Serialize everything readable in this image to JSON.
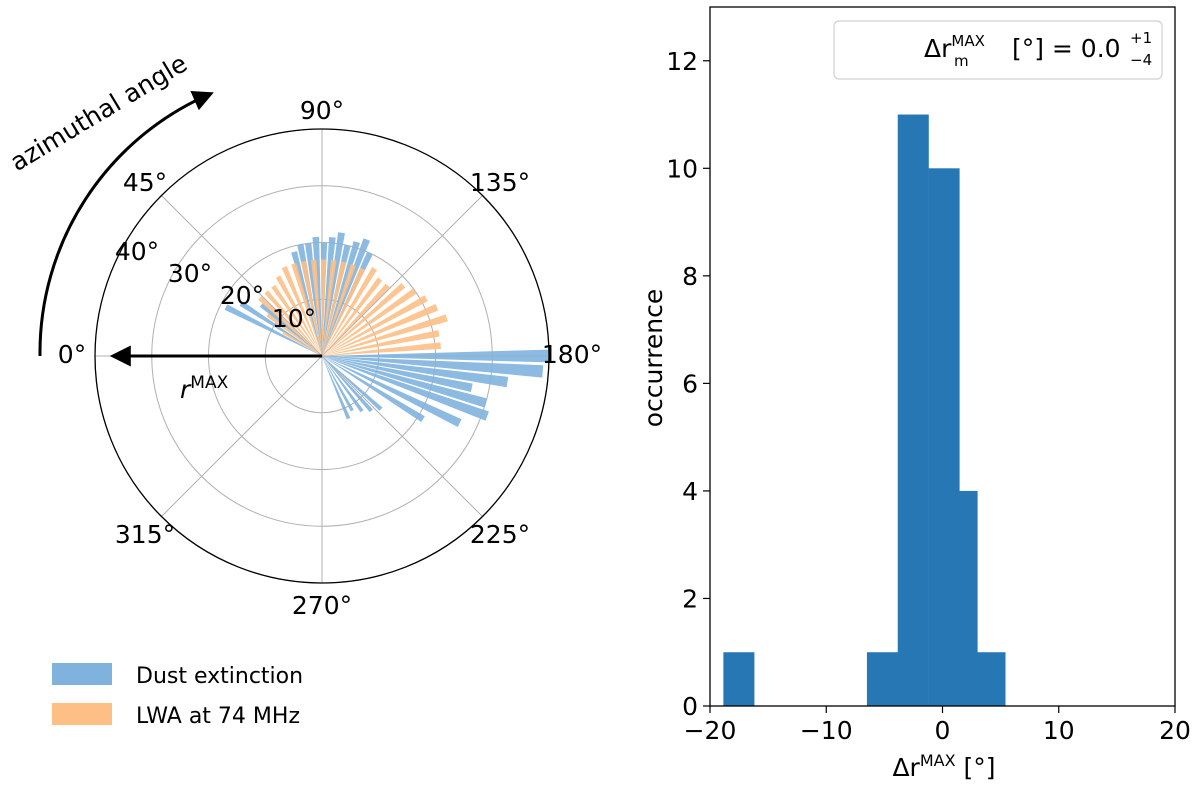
{
  "polar": {
    "angle_tick_labels": [
      "0°",
      "45°",
      "90°",
      "135°",
      "180°",
      "225°",
      "270°",
      "315°"
    ],
    "angle_tick_values": [
      0,
      45,
      90,
      135,
      180,
      225,
      270,
      315
    ],
    "radial_tick_labels": [
      "10°",
      "20°",
      "30°",
      "40°"
    ],
    "radial_tick_values": [
      10,
      20,
      30,
      40
    ],
    "rmax": 40,
    "azimuth_annotation": "azimuthal angle",
    "radius_annotation_base": "r",
    "radius_annotation_sup": "MAX",
    "legend": [
      {
        "label": "Dust extinction",
        "color": "#7fb3dd"
      },
      {
        "label": "LWA at 74 MHz",
        "color": "#fdbf85"
      }
    ]
  },
  "chart_data": [
    {
      "type": "polar-bar",
      "series": [
        {
          "name": "Dust extinction",
          "color": "#7fb3dd",
          "values": [
            {
              "angle": 27,
              "r": 19
            },
            {
              "angle": 33,
              "r": 17
            },
            {
              "angle": 40,
              "r": 14
            },
            {
              "angle": 75,
              "r": 19
            },
            {
              "angle": 79,
              "r": 20
            },
            {
              "angle": 83,
              "r": 20
            },
            {
              "angle": 87,
              "r": 21
            },
            {
              "angle": 91,
              "r": 20
            },
            {
              "angle": 95,
              "r": 21
            },
            {
              "angle": 99,
              "r": 22
            },
            {
              "angle": 103,
              "r": 20
            },
            {
              "angle": 107,
              "r": 21
            },
            {
              "angle": 111,
              "r": 22
            },
            {
              "angle": 115,
              "r": 20
            },
            {
              "angle": 180,
              "r": 40
            },
            {
              "angle": 184,
              "r": 39
            },
            {
              "angle": 188,
              "r": 33
            },
            {
              "angle": 192,
              "r": 27
            },
            {
              "angle": 196,
              "r": 30
            },
            {
              "angle": 200,
              "r": 31
            },
            {
              "angle": 206,
              "r": 27
            },
            {
              "angle": 212,
              "r": 21
            },
            {
              "angle": 222,
              "r": 14
            },
            {
              "angle": 228,
              "r": 13
            },
            {
              "angle": 234,
              "r": 12
            },
            {
              "angle": 241,
              "r": 11
            },
            {
              "angle": 247,
              "r": 12
            }
          ]
        },
        {
          "name": "LWA at 74 MHz",
          "color": "#fdbf85",
          "values": [
            {
              "angle": 31,
              "r": 8
            },
            {
              "angle": 37,
              "r": 12
            },
            {
              "angle": 43,
              "r": 15
            },
            {
              "angle": 49,
              "r": 15
            },
            {
              "angle": 55,
              "r": 15
            },
            {
              "angle": 61,
              "r": 16
            },
            {
              "angle": 67,
              "r": 17
            },
            {
              "angle": 73,
              "r": 17
            },
            {
              "angle": 79,
              "r": 17
            },
            {
              "angle": 85,
              "r": 17
            },
            {
              "angle": 91,
              "r": 17
            },
            {
              "angle": 97,
              "r": 17
            },
            {
              "angle": 103,
              "r": 17
            },
            {
              "angle": 109,
              "r": 17
            },
            {
              "angle": 115,
              "r": 17
            },
            {
              "angle": 121,
              "r": 18
            },
            {
              "angle": 127,
              "r": 17
            },
            {
              "angle": 133,
              "r": 17
            },
            {
              "angle": 139,
              "r": 19
            },
            {
              "angle": 145,
              "r": 20
            },
            {
              "angle": 151,
              "r": 21
            },
            {
              "angle": 157,
              "r": 22
            },
            {
              "angle": 163,
              "r": 23
            },
            {
              "angle": 169,
              "r": 21
            },
            {
              "angle": 175,
              "r": 21
            }
          ]
        }
      ]
    },
    {
      "type": "bar",
      "title": "",
      "xlabel": "Δr^MAX [°]",
      "ylabel": "occurrence",
      "xlim": [
        -20,
        20
      ],
      "ylim": [
        0,
        13
      ],
      "bin_width": 2.67,
      "bins": [
        {
          "x0": -18.85,
          "count": 1
        },
        {
          "x0": -6.5,
          "count": 1
        },
        {
          "x0": -3.85,
          "count": 11
        },
        {
          "x0": -1.2,
          "count": 10
        },
        {
          "x0": 0.35,
          "count": 4
        },
        {
          "x0": 2.75,
          "count": 1
        }
      ],
      "bar_color": "#2777b4",
      "x_tick_labels": [
        "−20",
        "−10",
        "0",
        "10",
        "20"
      ],
      "x_tick_values": [
        -20,
        -10,
        0,
        10,
        20
      ],
      "y_tick_labels": [
        "0",
        "2",
        "4",
        "6",
        "8",
        "10",
        "12"
      ],
      "y_tick_values": [
        0,
        2,
        4,
        6,
        8,
        10,
        12
      ],
      "xlabel_parts": {
        "delta": "Δr",
        "sup": "MAX",
        "unit": " [°]"
      },
      "legend_annotation": {
        "prefix": "Δr",
        "sub": "m",
        "sup": "MAX",
        "unit": " [°] = 0.0",
        "plus": "+1",
        "minus": "−4"
      }
    }
  ]
}
